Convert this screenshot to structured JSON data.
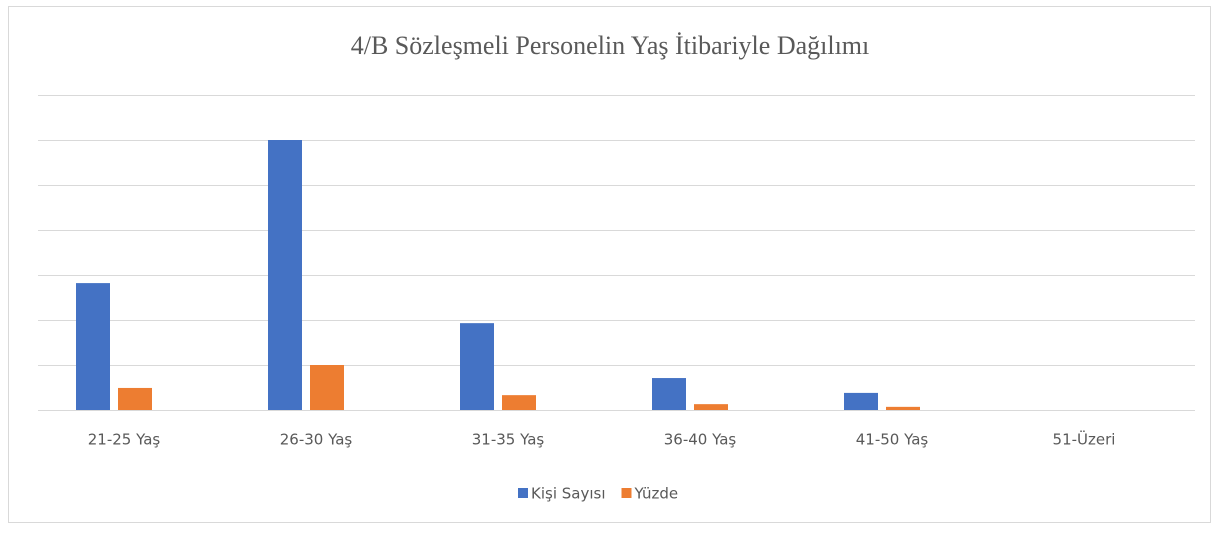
{
  "chart_data": {
    "type": "bar",
    "title": "4/B Sözleşmeli Personelin Yaş İtibariyle Dağılımı",
    "categories": [
      "21-25 Yaş",
      "26-30 Yaş",
      "31-35 Yaş",
      "36-40 Yaş",
      "41-50 Yaş",
      "51-Üzeri"
    ],
    "series": [
      {
        "name": "Kişi Sayısı",
        "color": "#4472c4",
        "values": [
          2.82,
          6.0,
          1.93,
          0.71,
          0.38,
          0
        ]
      },
      {
        "name": "Yüzde",
        "color": "#ed7d31",
        "values": [
          0.49,
          1.0,
          0.33,
          0.13,
          0.07,
          0
        ]
      }
    ],
    "ylim": [
      0,
      7
    ],
    "yticks": [
      0,
      1,
      2,
      3,
      4,
      5,
      6,
      7
    ],
    "grid": true,
    "legend": "bottom"
  }
}
